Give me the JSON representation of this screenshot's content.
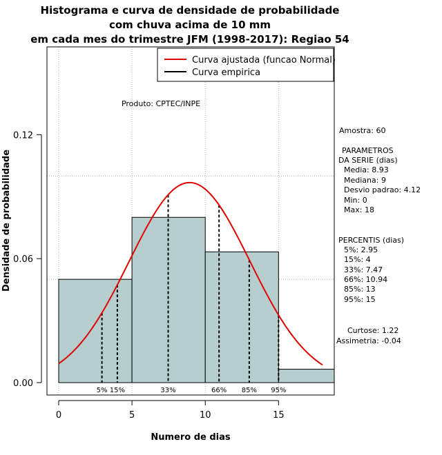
{
  "chart_data": {
    "type": "histogram",
    "title_lines": [
      "Histograma e curva de densidade de probabilidade",
      "com chuva acima de 10 mm",
      "em cada mes do trimestre JFM (1998-2017): Regiao 54"
    ],
    "xlabel": "Numero de dias",
    "ylabel": "Densidade de probabilidade",
    "xlim": [
      -0.8,
      18.8
    ],
    "ylim": [
      -0.006,
      0.1625
    ],
    "x_ticks": [
      0,
      5,
      10,
      15
    ],
    "y_ticks": [
      0.0,
      0.06,
      0.12
    ],
    "y_tick_labels": [
      "0.00",
      "0.06",
      "0.12"
    ],
    "grid_x": [
      0,
      5,
      10,
      15
    ],
    "grid_y": [
      0.05,
      0.1
    ],
    "bins": [
      {
        "x0": 0,
        "x1": 5,
        "density": 0.05
      },
      {
        "x0": 5,
        "x1": 10,
        "density": 0.08
      },
      {
        "x0": 10,
        "x1": 15,
        "density": 0.0633
      },
      {
        "x0": 15,
        "x1": 18.8,
        "density": 0.0065
      }
    ],
    "bar_color": "#b7cece",
    "normal_curve": {
      "mean": 8.93,
      "sd": 4.12,
      "x_from": 0,
      "x_to": 18,
      "color": "#e00000"
    },
    "percentile_lines": [
      {
        "label": "5%",
        "x": 2.95
      },
      {
        "label": "15%",
        "x": 4
      },
      {
        "label": "33%",
        "x": 7.47
      },
      {
        "label": "66%",
        "x": 10.94
      },
      {
        "label": "85%",
        "x": 13
      },
      {
        "label": "95%",
        "x": 15
      }
    ],
    "legend": {
      "position": "top-right",
      "entries": [
        {
          "label": "Curva ajustada (funcao Normal)",
          "color": "#e00000"
        },
        {
          "label": "Curva empirica",
          "color": "#000000"
        }
      ]
    },
    "annotation_product": "Produto: CPTEC/INPE"
  },
  "side_panel": {
    "amostra": "Amostra: 60",
    "parametros_title_1": "PARAMETROS",
    "parametros_title_2": "DA SERIE (dias)",
    "media": "Media: 8.93",
    "mediana": "Mediana: 9",
    "desvio": "Desvio padrao: 4.12",
    "min": "Min: 0",
    "max": "Max: 18",
    "percentis_title": "PERCENTIS (dias)",
    "p5": "5%: 2.95",
    "p15": "15%: 4",
    "p33": "33%: 7.47",
    "p66": "66%: 10.94",
    "p85": "85%: 13",
    "p95": "95%: 15",
    "curtose": "Curtose: 1.22",
    "assimetria": "Assimetria: -0.04"
  }
}
